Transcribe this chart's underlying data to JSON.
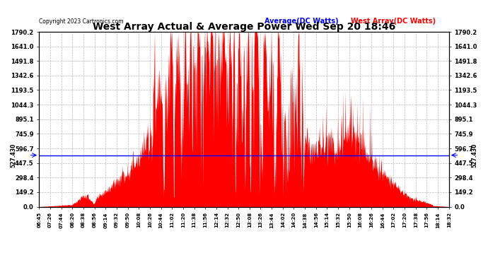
{
  "title": "West Array Actual & Average Power Wed Sep 20 18:46",
  "copyright": "Copyright 2023 Cartronics.com",
  "legend_average": "Average(DC Watts)",
  "legend_west": "West Array(DC Watts)",
  "average_value": 527.43,
  "ymax": 1790.2,
  "ymin": 0.0,
  "yticks": [
    0.0,
    149.2,
    298.4,
    447.5,
    596.7,
    745.9,
    895.1,
    1044.3,
    1193.5,
    1342.6,
    1491.8,
    1641.0,
    1790.2
  ],
  "ytick_labels": [
    "0.0",
    "149.2",
    "298.4",
    "447.5",
    "596.7",
    "745.9",
    "895.1",
    "1044.3",
    "1193.5",
    "1342.6",
    "1491.8",
    "1641.0",
    "1790.2"
  ],
  "average_line_color": "blue",
  "fill_color": "red",
  "background_color": "#ffffff",
  "grid_color": "#bbbbbb",
  "title_color": "#000000",
  "copyright_color": "#000000",
  "legend_avg_color": "blue",
  "legend_west_color": "red",
  "xtick_labels": [
    "06:45",
    "07:26",
    "07:44",
    "08:20",
    "08:38",
    "08:56",
    "09:14",
    "09:32",
    "09:50",
    "10:08",
    "10:26",
    "10:44",
    "11:02",
    "11:20",
    "11:38",
    "11:56",
    "12:14",
    "12:32",
    "12:50",
    "13:08",
    "13:26",
    "13:44",
    "14:02",
    "14:20",
    "14:38",
    "14:56",
    "15:14",
    "15:32",
    "15:50",
    "16:08",
    "16:26",
    "16:44",
    "17:02",
    "17:20",
    "17:38",
    "17:56",
    "18:14",
    "18:32"
  ],
  "figsize": [
    6.9,
    3.75
  ],
  "dpi": 100
}
